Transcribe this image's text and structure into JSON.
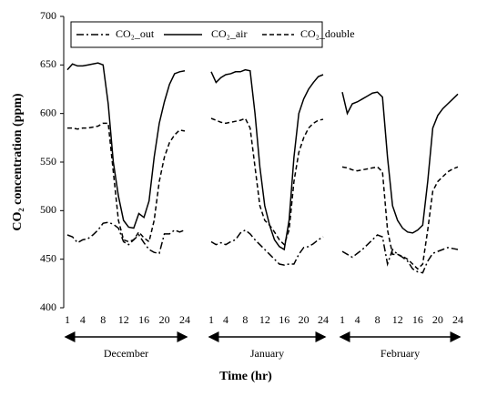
{
  "chart_data": {
    "type": "line",
    "ylabel": "CO₂ concentration (ppm)",
    "xlabel": "Time (hr)",
    "ylim": [
      400,
      700
    ],
    "yticks": [
      400,
      450,
      500,
      550,
      600,
      650,
      700
    ],
    "legend": "top",
    "panels": [
      {
        "label": "December",
        "x": [
          1,
          2,
          3,
          4,
          5,
          6,
          7,
          8,
          9,
          10,
          11,
          12,
          13,
          14,
          15,
          16,
          17,
          18,
          19,
          20,
          21,
          22,
          23,
          24
        ],
        "xlim": [
          1,
          24
        ],
        "xticks": [
          1,
          4,
          8,
          12,
          16,
          20,
          24
        ]
      },
      {
        "label": "January",
        "x": [
          1,
          2,
          3,
          4,
          5,
          6,
          7,
          8,
          9,
          10,
          11,
          12,
          13,
          14,
          15,
          16,
          17,
          18,
          19,
          20,
          21,
          22,
          23,
          24
        ],
        "xlim": [
          1,
          24
        ],
        "xticks": [
          1,
          4,
          8,
          12,
          16,
          20,
          24
        ]
      },
      {
        "label": "February",
        "x": [
          1,
          2,
          3,
          4,
          5,
          6,
          7,
          8,
          9,
          10,
          11,
          12,
          13,
          14,
          15,
          16,
          17,
          18,
          19,
          20,
          21,
          22,
          23,
          24
        ],
        "xlim": [
          1,
          24
        ],
        "xticks": [
          1,
          4,
          8,
          12,
          16,
          20,
          24
        ]
      }
    ],
    "series": [
      {
        "name": "CO₂_out",
        "color": "#000000",
        "dash": "dashdot",
        "values": [
          [
            475,
            473,
            467,
            470,
            471,
            475,
            480,
            487,
            488,
            486,
            482,
            468,
            465,
            470,
            475,
            467,
            460,
            457,
            456,
            476,
            476,
            480,
            478,
            480
          ],
          [
            468,
            465,
            467,
            465,
            468,
            470,
            477,
            480,
            476,
            470,
            465,
            460,
            455,
            450,
            445,
            444,
            445,
            445,
            455,
            462,
            463,
            466,
            470,
            473
          ],
          [
            458,
            455,
            452,
            456,
            460,
            465,
            470,
            475,
            473,
            445,
            460,
            455,
            452,
            448,
            440,
            437,
            436,
            448,
            456,
            458,
            460,
            462,
            461,
            460
          ]
        ]
      },
      {
        "name": "CO₂_air",
        "color": "#000000",
        "dash": "solid",
        "values": [
          [
            645,
            651,
            649,
            649,
            650,
            651,
            652,
            650,
            610,
            550,
            515,
            490,
            483,
            482,
            497,
            493,
            510,
            555,
            590,
            612,
            630,
            641,
            643,
            644
          ],
          [
            643,
            632,
            637,
            640,
            641,
            643,
            643,
            645,
            644,
            600,
            545,
            505,
            485,
            470,
            463,
            460,
            490,
            555,
            600,
            615,
            625,
            632,
            638,
            640
          ],
          [
            622,
            600,
            610,
            612,
            615,
            618,
            621,
            622,
            617,
            555,
            505,
            490,
            482,
            478,
            477,
            480,
            485,
            530,
            585,
            598,
            605,
            610,
            615,
            620
          ]
        ]
      },
      {
        "name": "CO₂_double",
        "color": "#000000",
        "dash": "dashed",
        "values": [
          [
            585,
            585,
            584,
            585,
            585,
            586,
            587,
            590,
            590,
            540,
            490,
            470,
            468,
            470,
            478,
            472,
            468,
            490,
            530,
            555,
            570,
            578,
            583,
            582
          ],
          [
            595,
            593,
            591,
            590,
            591,
            592,
            593,
            595,
            585,
            545,
            505,
            490,
            485,
            478,
            470,
            465,
            480,
            530,
            560,
            575,
            585,
            590,
            593,
            594
          ],
          [
            545,
            544,
            542,
            541,
            542,
            543,
            544,
            545,
            540,
            480,
            455,
            455,
            453,
            450,
            445,
            440,
            445,
            480,
            520,
            530,
            535,
            540,
            543,
            545
          ]
        ]
      }
    ]
  }
}
